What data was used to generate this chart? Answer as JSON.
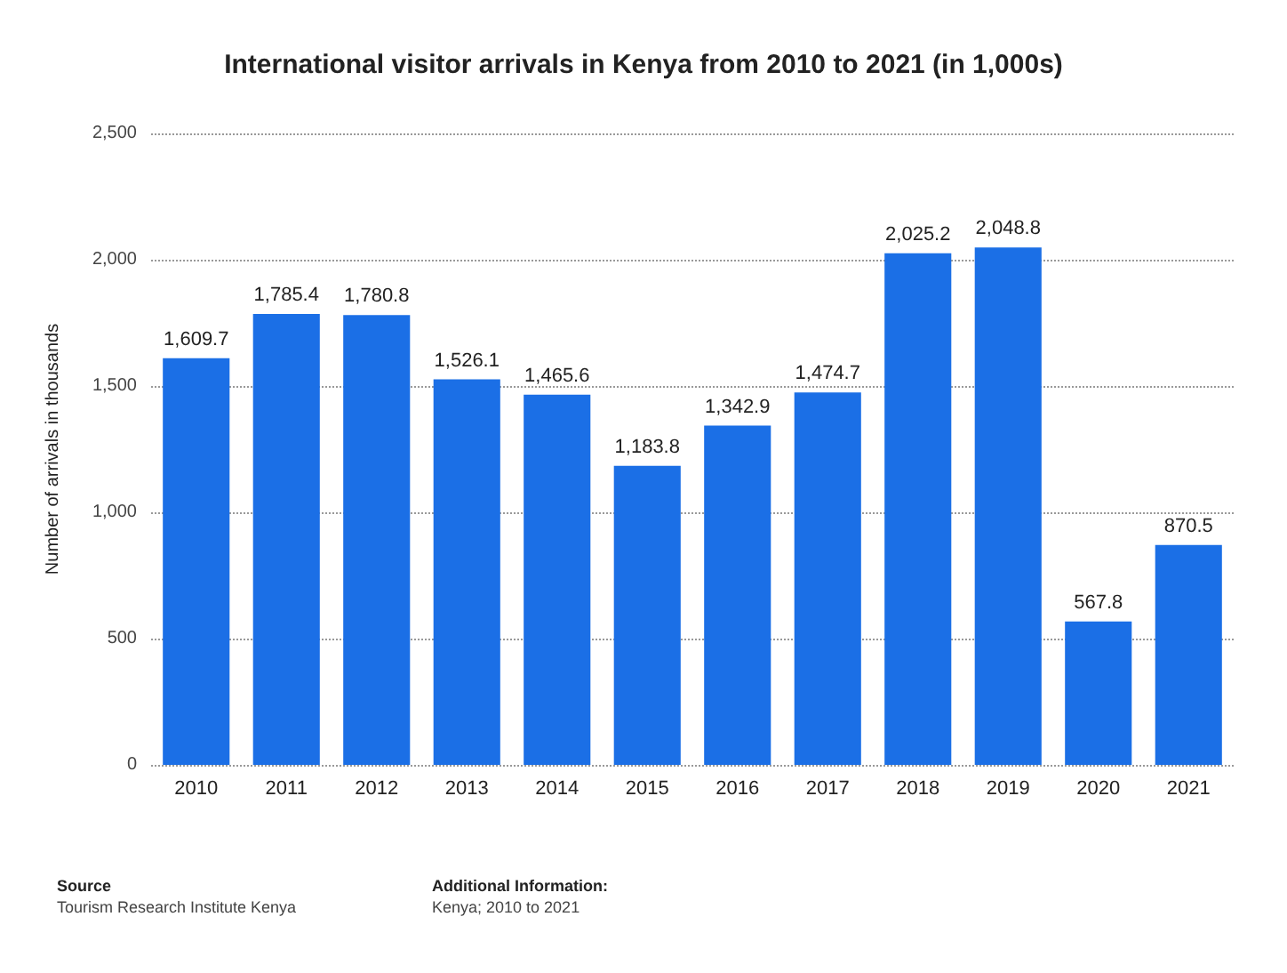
{
  "chart_data": {
    "type": "bar",
    "title": "International visitor arrivals in Kenya from 2010 to 2021 (in 1,000s)",
    "ylabel": "Number of arrivals in thousands",
    "categories": [
      "2010",
      "2011",
      "2012",
      "2013",
      "2014",
      "2015",
      "2016",
      "2017",
      "2018",
      "2019",
      "2020",
      "2021"
    ],
    "values": [
      1609.7,
      1785.4,
      1780.8,
      1526.1,
      1465.6,
      1183.8,
      1342.9,
      1474.7,
      2025.2,
      2048.8,
      567.8,
      870.5
    ],
    "color": "#1b6fe6",
    "ylim": [
      0,
      2500
    ],
    "yticks": [
      0,
      {
        "value": 500,
        "label": "500"
      },
      {
        "value": 1000,
        "label": "1,000"
      },
      {
        "value": 1500,
        "label": "1,500"
      },
      {
        "value": 2000,
        "label": "2,000"
      },
      {
        "value": 2500,
        "label": "2,500"
      }
    ],
    "grid": "y",
    "value_labels": [
      "1,609.7",
      "1,785.4",
      "1,780.8",
      "1,526.1",
      "1,465.6",
      "1,183.8",
      "1,342.9",
      "1,474.7",
      "2,025.2",
      "2,048.8",
      "567.8",
      "870.5"
    ],
    "annotations": [
      "Source",
      "Tourism Research Institute Kenya",
      "Additional Information:",
      "Kenya; 2010 to 2021"
    ]
  }
}
